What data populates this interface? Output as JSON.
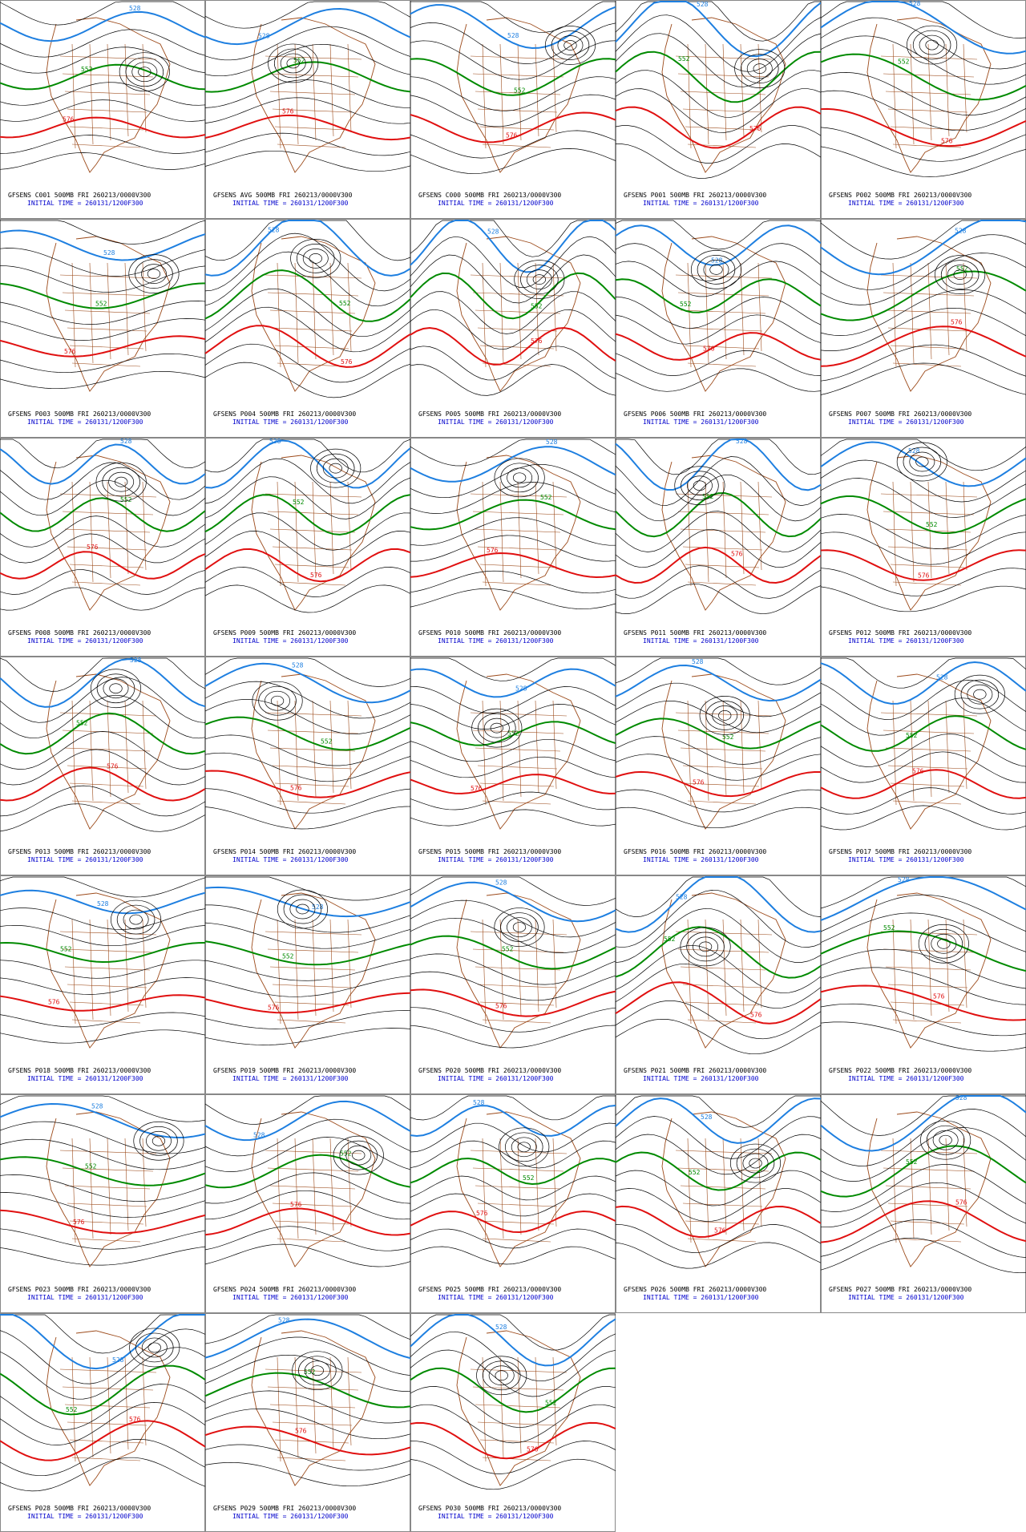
{
  "panels": [
    {
      "title": "GFSENS C001 500MB FRI 260213/0000V300",
      "init": "INITIAL TIME = 260131/1200F300",
      "contours": [
        528,
        552,
        576
      ]
    },
    {
      "title": "GFSENS AVG 500MB FRI 260213/0000V300",
      "init": "INITIAL TIME = 260131/1200F300",
      "contours": [
        528,
        552,
        576
      ]
    },
    {
      "title": "GFSENS C000 500MB FRI 260213/0000V300",
      "init": "INITIAL TIME = 260131/1200F300",
      "contours": [
        528,
        552,
        576
      ]
    },
    {
      "title": "GFSENS P001 500MB FRI 260213/0000V300",
      "init": "INITIAL TIME = 260131/1200F300",
      "contours": [
        528,
        552,
        576
      ]
    },
    {
      "title": "GFSENS P002 500MB FRI 260213/0000V300",
      "init": "INITIAL TIME = 260131/1200F300",
      "contours": [
        528,
        552,
        576
      ]
    },
    {
      "title": "GFSENS P003 500MB FRI 260213/0000V300",
      "init": "INITIAL TIME = 260131/1200F300",
      "contours": [
        528,
        552,
        576
      ]
    },
    {
      "title": "GFSENS P004 500MB FRI 260213/0000V300",
      "init": "INITIAL TIME = 260131/1200F300",
      "contours": [
        528,
        552,
        576
      ]
    },
    {
      "title": "GFSENS P005 500MB FRI 260213/0000V300",
      "init": "INITIAL TIME = 260131/1200F300",
      "contours": [
        528,
        552,
        576
      ]
    },
    {
      "title": "GFSENS P006 500MB FRI 260213/0000V300",
      "init": "INITIAL TIME = 260131/1200F300",
      "contours": [
        528,
        552,
        576
      ]
    },
    {
      "title": "GFSENS P007 500MB FRI 260213/0000V300",
      "init": "INITIAL TIME = 260131/1200F300",
      "contours": [
        528,
        552,
        576
      ]
    },
    {
      "title": "GFSENS P008 500MB FRI 260213/0000V300",
      "init": "INITIAL TIME = 260131/1200F300",
      "contours": [
        528,
        552,
        576
      ]
    },
    {
      "title": "GFSENS P009 500MB FRI 260213/0000V300",
      "init": "INITIAL TIME = 260131/1200F300",
      "contours": [
        528,
        552,
        576
      ]
    },
    {
      "title": "GFSENS P010 500MB FRI 260213/0000V300",
      "init": "INITIAL TIME = 260131/1200F300",
      "contours": [
        528,
        552,
        576
      ]
    },
    {
      "title": "GFSENS P011 500MB FRI 260213/0000V300",
      "init": "INITIAL TIME = 260131/1200F300",
      "contours": [
        528,
        552,
        576
      ]
    },
    {
      "title": "GFSENS P012 500MB FRI 260213/0000V300",
      "init": "INITIAL TIME = 260131/1200F300",
      "contours": [
        528,
        552,
        576
      ]
    },
    {
      "title": "GFSENS P013 500MB FRI 260213/0000V300",
      "init": "INITIAL TIME = 260131/1200F300",
      "contours": [
        528,
        552,
        576
      ]
    },
    {
      "title": "GFSENS P014 500MB FRI 260213/0000V300",
      "init": "INITIAL TIME = 260131/1200F300",
      "contours": [
        528,
        552,
        576
      ]
    },
    {
      "title": "GFSENS P015 500MB FRI 260213/0000V300",
      "init": "INITIAL TIME = 260131/1200F300",
      "contours": [
        528,
        552,
        576
      ]
    },
    {
      "title": "GFSENS P016 500MB FRI 260213/0000V300",
      "init": "INITIAL TIME = 260131/1200F300",
      "contours": [
        528,
        552,
        576
      ]
    },
    {
      "title": "GFSENS P017 500MB FRI 260213/0000V300",
      "init": "INITIAL TIME = 260131/1200F300",
      "contours": [
        528,
        552,
        576
      ]
    },
    {
      "title": "GFSENS P018 500MB FRI 260213/0000V300",
      "init": "INITIAL TIME = 260131/1200F300",
      "contours": [
        528,
        552,
        576
      ]
    },
    {
      "title": "GFSENS P019 500MB FRI 260213/0000V300",
      "init": "INITIAL TIME = 260131/1200F300",
      "contours": [
        528,
        552,
        576
      ]
    },
    {
      "title": "GFSENS P020 500MB FRI 260213/0000V300",
      "init": "INITIAL TIME = 260131/1200F300",
      "contours": [
        528,
        552,
        576
      ]
    },
    {
      "title": "GFSENS P021 500MB FRI 260213/0000V300",
      "init": "INITIAL TIME = 260131/1200F300",
      "contours": [
        528,
        552,
        576
      ]
    },
    {
      "title": "GFSENS P022 500MB FRI 260213/0000V300",
      "init": "INITIAL TIME = 260131/1200F300",
      "contours": [
        528,
        552,
        576
      ]
    },
    {
      "title": "GFSENS P023 500MB FRI 260213/0000V300",
      "init": "INITIAL TIME = 260131/1200F300",
      "contours": [
        528,
        552,
        576
      ]
    },
    {
      "title": "GFSENS P024 500MB FRI 260213/0000V300",
      "init": "INITIAL TIME = 260131/1200F300",
      "contours": [
        528,
        552,
        576
      ]
    },
    {
      "title": "GFSENS P025 500MB FRI 260213/0000V300",
      "init": "INITIAL TIME = 260131/1200F300",
      "contours": [
        528,
        552,
        576
      ]
    },
    {
      "title": "GFSENS P026 500MB FRI 260213/0000V300",
      "init": "INITIAL TIME = 260131/1200F300",
      "contours": [
        528,
        552,
        576
      ]
    },
    {
      "title": "GFSENS P027 500MB FRI 260213/0000V300",
      "init": "INITIAL TIME = 260131/1200F300",
      "contours": [
        528,
        552,
        576
      ]
    },
    {
      "title": "GFSENS P028 500MB FRI 260213/0000V300",
      "init": "INITIAL TIME = 260131/1200F300",
      "contours": [
        528,
        552,
        576
      ]
    },
    {
      "title": "GFSENS P029 500MB FRI 260213/0000V300",
      "init": "INITIAL TIME = 260131/1200F300",
      "contours": [
        528,
        552,
        576
      ]
    },
    {
      "title": "GFSENS P030 500MB FRI 260213/0000V300",
      "init": "INITIAL TIME = 260131/1200F300",
      "contours": [
        528,
        552,
        576
      ]
    }
  ]
}
